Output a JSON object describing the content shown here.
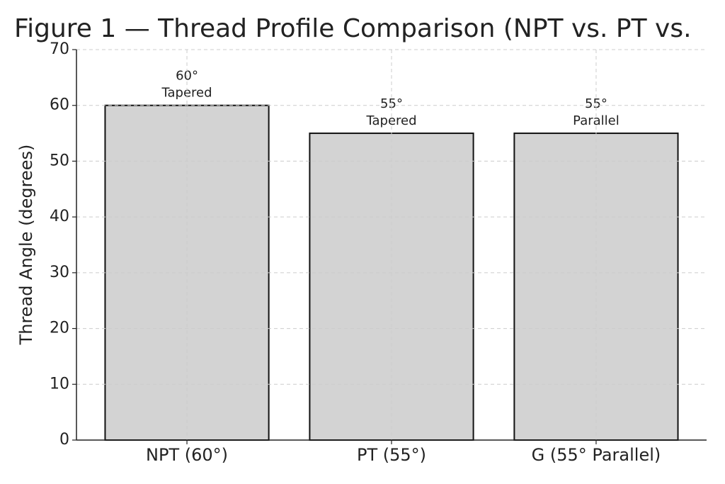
{
  "chart_data": {
    "type": "bar",
    "title": "Figure 1 — Thread Profile Comparison (NPT vs. PT vs.",
    "y_label": "Thread Angle (degrees)",
    "categories": [
      "NPT (60°)",
      "PT (55°)",
      "G (55° Parallel)"
    ],
    "values": [
      60,
      55,
      55
    ],
    "value_labels": [
      "60°\nTapered",
      "55°\nTapered",
      "55°\nParallel"
    ],
    "color": "#d3d3d3",
    "ylim": [
      0,
      70
    ],
    "yticks": [
      0,
      10,
      20,
      30,
      40,
      50,
      60,
      70
    ],
    "grid": true
  }
}
